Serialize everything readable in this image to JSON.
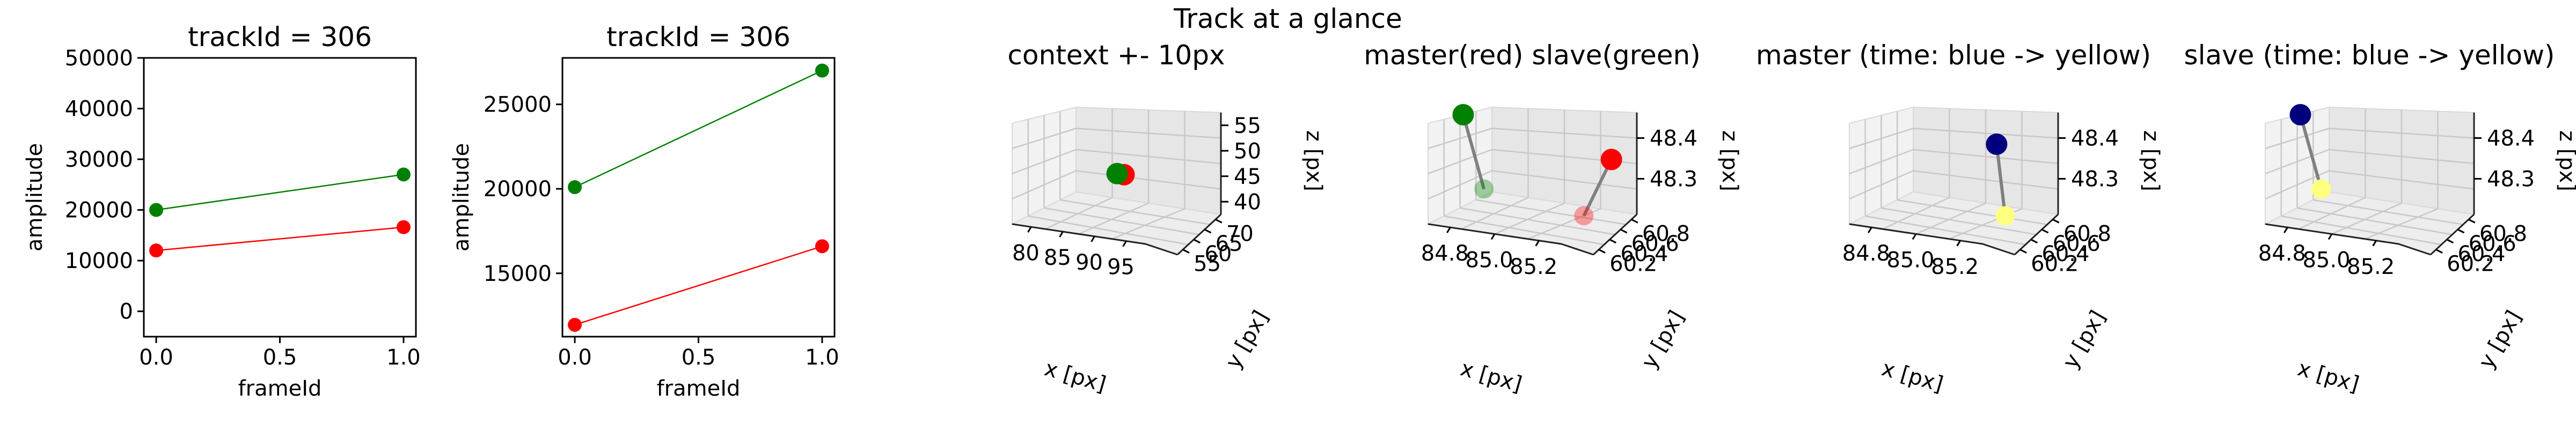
{
  "figure": {
    "suptitle": "Track at a glance"
  },
  "chart_data": [
    {
      "type": "line",
      "title": "trackId = 306",
      "xlabel": "frameId",
      "ylabel": "amplitude",
      "xlim": [
        -0.05,
        1.05
      ],
      "ylim": [
        -5000,
        50000
      ],
      "xticks": [
        "0.0",
        "0.5",
        "1.0"
      ],
      "xtick_values": [
        0,
        0.5,
        1
      ],
      "yticks": [
        "0",
        "10000",
        "20000",
        "30000",
        "40000",
        "50000"
      ],
      "ytick_values": [
        0,
        10000,
        20000,
        30000,
        40000,
        50000
      ],
      "x": [
        0,
        1
      ],
      "series": [
        {
          "values": [
            20000,
            27000
          ],
          "color": "#008000"
        },
        {
          "values": [
            12000,
            16600
          ],
          "color": "#ff0000"
        }
      ]
    },
    {
      "type": "line",
      "title": "trackId = 306",
      "xlabel": "frameId",
      "ylabel": "amplitude",
      "xlim": [
        -0.05,
        1.05
      ],
      "ylim": [
        11250,
        27750
      ],
      "xticks": [
        "0.0",
        "0.5",
        "1.0"
      ],
      "xtick_values": [
        0,
        0.5,
        1
      ],
      "yticks": [
        "15000",
        "20000",
        "25000"
      ],
      "ytick_values": [
        15000,
        20000,
        25000
      ],
      "x": [
        0,
        1
      ],
      "series": [
        {
          "values": [
            20100,
            27000
          ],
          "color": "#008000"
        },
        {
          "values": [
            11950,
            16600
          ],
          "color": "#ff0000"
        }
      ]
    },
    {
      "type": "scatter",
      "title": "context +- 10px",
      "xlabel": "x [px]",
      "ylabel": "y [px]",
      "zlabel": "z [px]",
      "xticks": [
        "80",
        "85",
        "90",
        "95"
      ],
      "yticks": [
        "55",
        "60",
        "65",
        "70"
      ],
      "zticks": [
        "40",
        "45",
        "50",
        "55"
      ],
      "points": [
        {
          "x": 85.0,
          "y": 60.2,
          "z": 48.3,
          "color": "#ff0000"
        },
        {
          "x": 84.8,
          "y": 60.8,
          "z": 48.4,
          "color": "#008000"
        }
      ]
    },
    {
      "type": "scatter",
      "title": "master(red) slave(green)",
      "xlabel": "x [px]",
      "ylabel": "y [px]",
      "zlabel": "z [px]",
      "xticks": [
        "84.8",
        "85.0",
        "85.2"
      ],
      "yticks": [
        "60.2",
        "60.4",
        "60.6",
        "60.8"
      ],
      "zticks": [
        "48.3",
        "48.4"
      ],
      "points": [
        {
          "x": 84.8,
          "y": 60.2,
          "z": 48.45,
          "color": "#008000"
        },
        {
          "x": 85.0,
          "y": 60.2,
          "z": 48.28,
          "color": "#008000"
        },
        {
          "x": 85.1,
          "y": 60.8,
          "z": 48.4,
          "color": "#ff0000"
        },
        {
          "x": 85.2,
          "y": 60.2,
          "z": 48.3,
          "color": "#ff0000"
        }
      ]
    },
    {
      "type": "scatter",
      "title": "master (time: blue -> yellow)",
      "xlabel": "x [px]",
      "ylabel": "y [px]",
      "zlabel": "z [px]",
      "xticks": [
        "84.8",
        "85.0",
        "85.2"
      ],
      "yticks": [
        "60.2",
        "60.4",
        "60.6",
        "60.8"
      ],
      "zticks": [
        "48.3",
        "48.4"
      ],
      "points": [
        {
          "x": 85.1,
          "y": 60.8,
          "z": 48.4,
          "color": "#00007f"
        },
        {
          "x": 85.2,
          "y": 60.2,
          "z": 48.3,
          "color": "#ffff7f"
        }
      ]
    },
    {
      "type": "scatter",
      "title": "slave (time: blue -> yellow)",
      "xlabel": "x [px]",
      "ylabel": "y [px]",
      "zlabel": "z [px]",
      "xticks": [
        "84.8",
        "85.0",
        "85.2"
      ],
      "yticks": [
        "60.2",
        "60.4",
        "60.6",
        "60.8"
      ],
      "zticks": [
        "48.3",
        "48.4"
      ],
      "points": [
        {
          "x": 84.8,
          "y": 60.2,
          "z": 48.45,
          "color": "#00007f"
        },
        {
          "x": 85.0,
          "y": 60.2,
          "z": 48.28,
          "color": "#ffff7f"
        }
      ]
    }
  ]
}
